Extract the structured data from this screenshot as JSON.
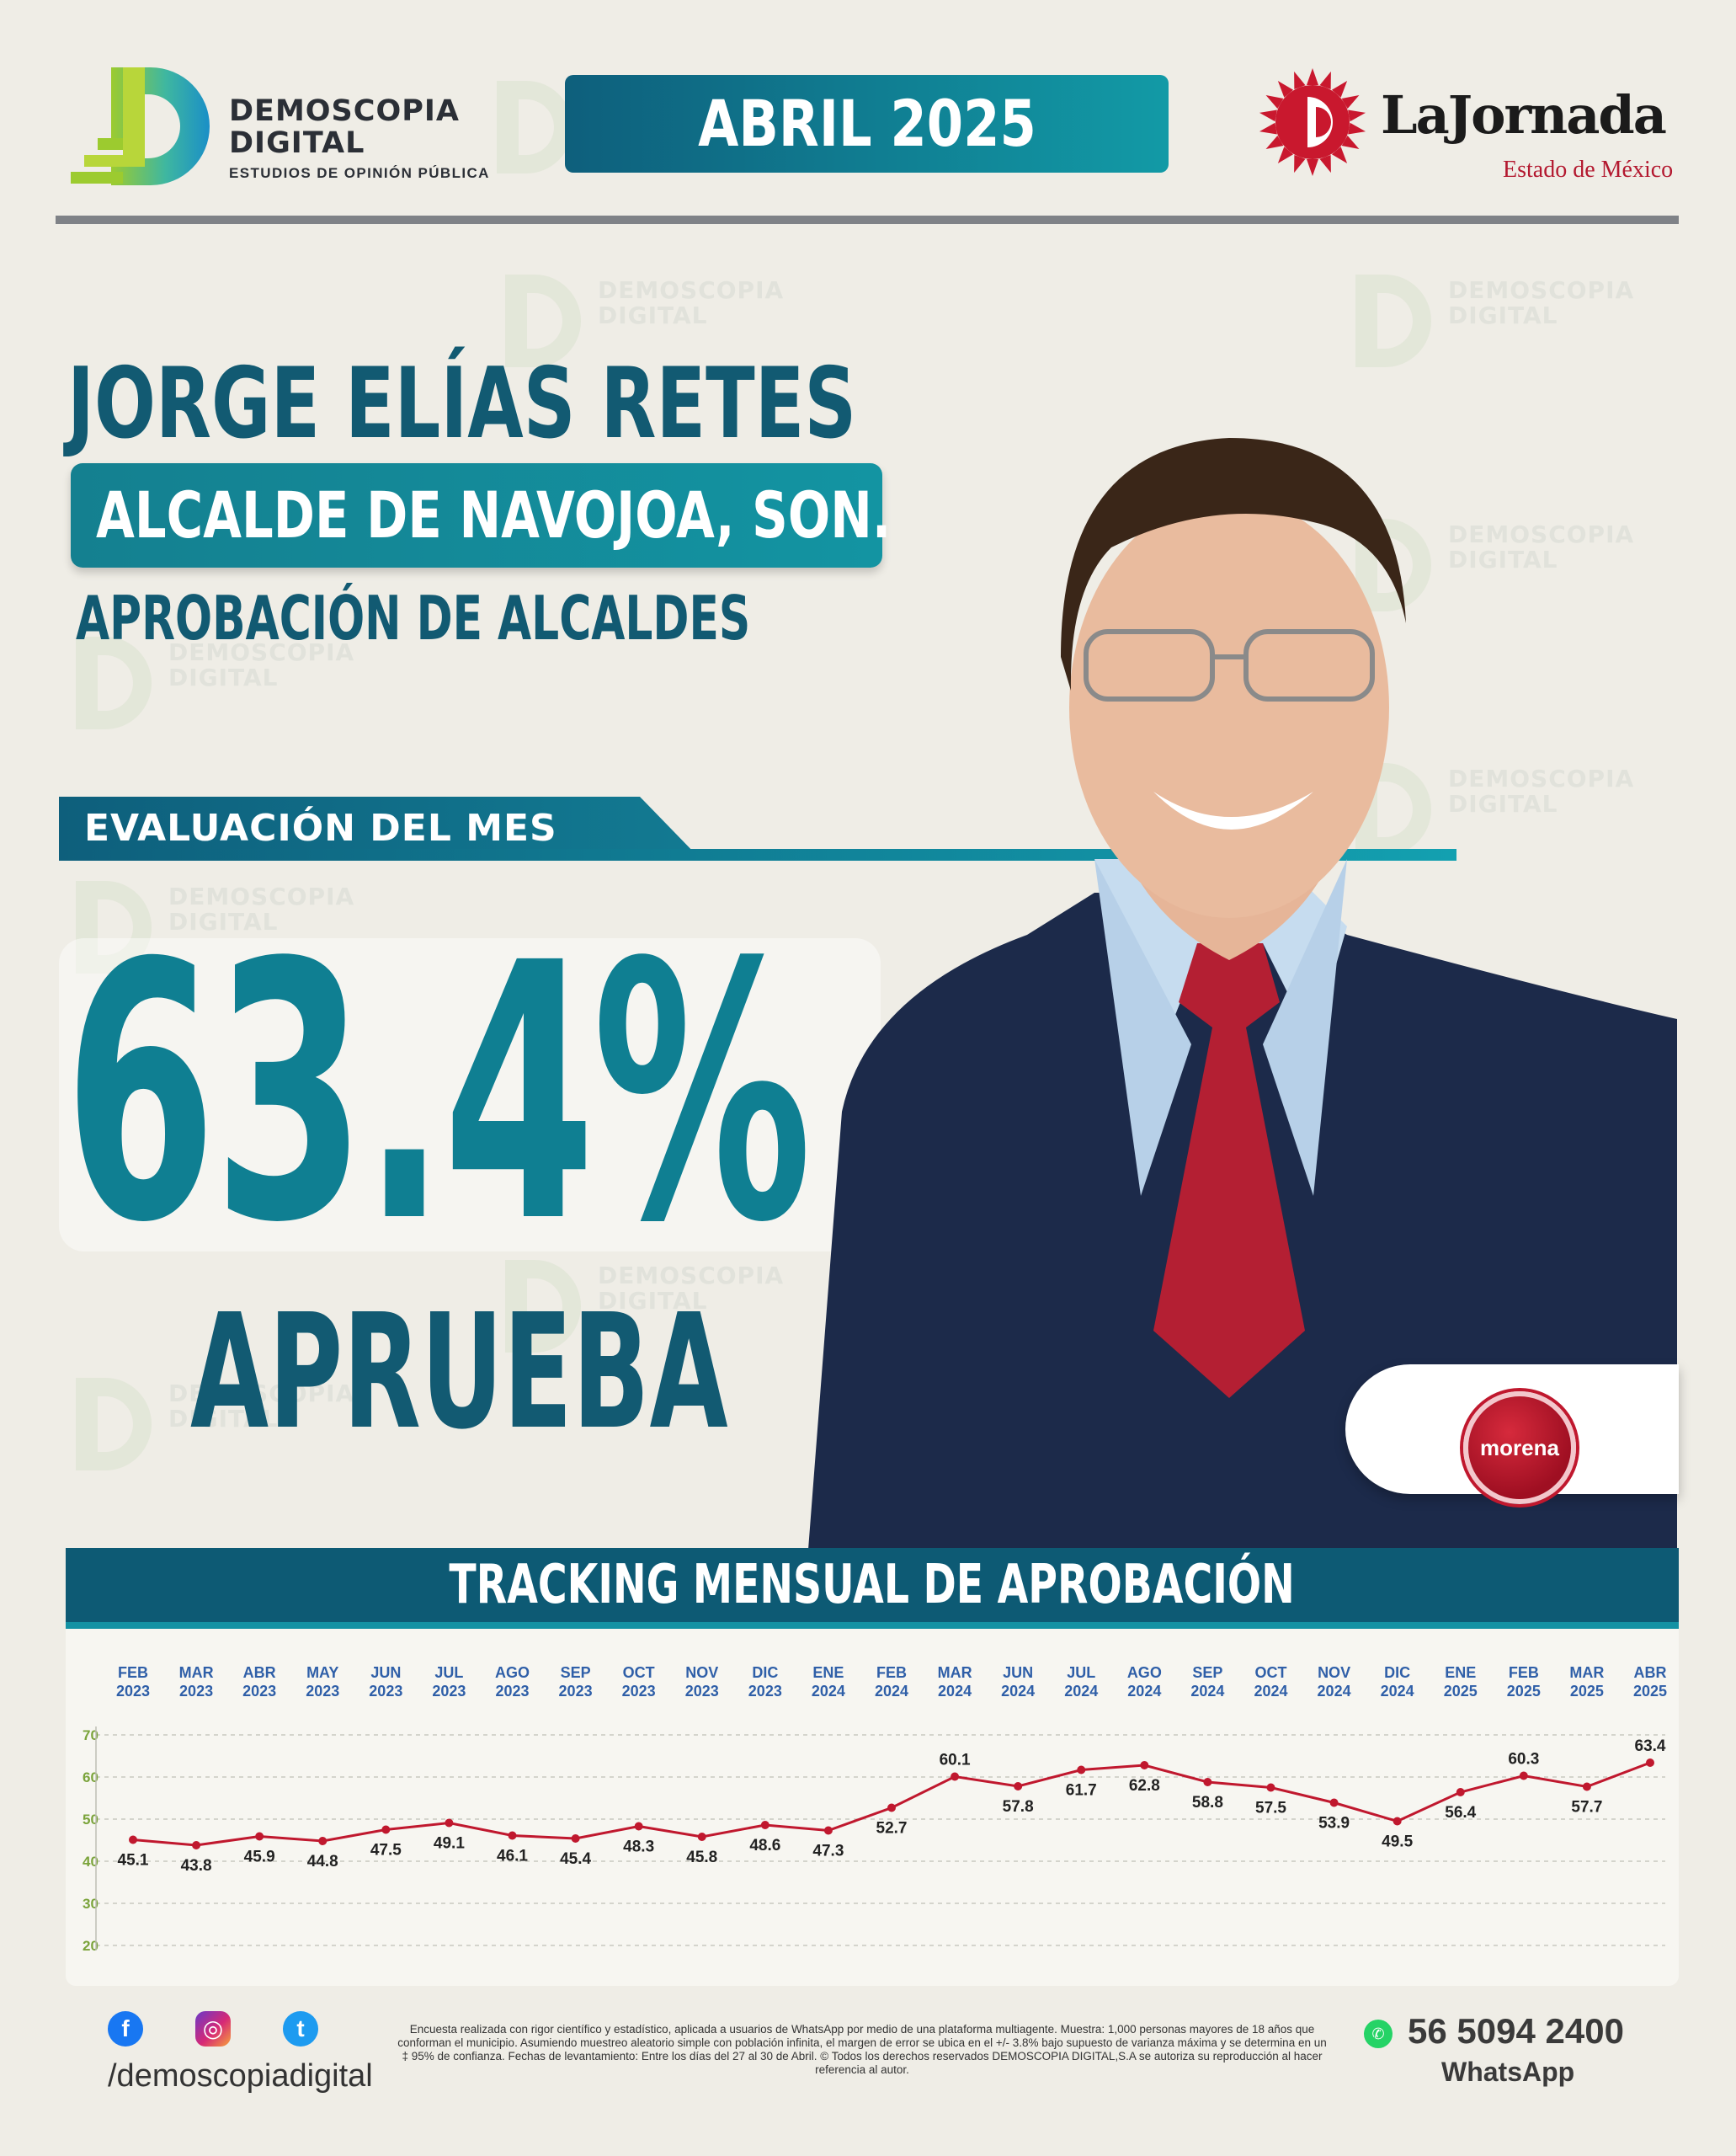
{
  "header": {
    "pollster_line1": "DEMOSCOPIA",
    "pollster_line2": "DIGITAL",
    "pollster_tagline": "ESTUDIOS DE OPINIÓN PÚBLICA",
    "date": "ABRIL 2025",
    "media_name": "LaJornada",
    "media_region": "Estado de México"
  },
  "profile": {
    "name": "JORGE ELÍAS RETES",
    "role": "ALCALDE DE NAVOJOA, SON.",
    "subtitle": "APROBACIÓN DE ALCALDES",
    "eval_label": "EVALUACIÓN DEL MES",
    "approval": "63.4%",
    "approval_label": "APRUEBA",
    "party": "morena"
  },
  "colors": {
    "primary": "#125a72",
    "accent": "#0f7f92",
    "line": "#c0182e",
    "month_labels": "#2f5fa8",
    "y_ticks": "#7aa33a"
  },
  "chart_data": {
    "type": "line",
    "title": "TRACKING MENSUAL DE APROBACIÓN",
    "x": [
      "FEB 2023",
      "MAR 2023",
      "ABR 2023",
      "MAY 2023",
      "JUN 2023",
      "JUL 2023",
      "AGO 2023",
      "SEP 2023",
      "OCT 2023",
      "NOV 2023",
      "DIC 2023",
      "ENE 2024",
      "FEB 2024",
      "MAR 2024",
      "JUN 2024",
      "JUL 2024",
      "AGO 2024",
      "SEP 2024",
      "OCT 2024",
      "NOV 2024",
      "DIC 2024",
      "ENE 2025",
      "FEB 2025",
      "MAR 2025",
      "ABR 2025"
    ],
    "months": [
      "FEB",
      "MAR",
      "ABR",
      "MAY",
      "JUN",
      "JUL",
      "AGO",
      "SEP",
      "OCT",
      "NOV",
      "DIC",
      "ENE",
      "FEB",
      "MAR",
      "JUN",
      "JUL",
      "AGO",
      "SEP",
      "OCT",
      "NOV",
      "DIC",
      "ENE",
      "FEB",
      "MAR",
      "ABR"
    ],
    "years": [
      "2023",
      "2023",
      "2023",
      "2023",
      "2023",
      "2023",
      "2023",
      "2023",
      "2023",
      "2023",
      "2023",
      "2024",
      "2024",
      "2024",
      "2024",
      "2024",
      "2024",
      "2024",
      "2024",
      "2024",
      "2024",
      "2025",
      "2025",
      "2025",
      "2025"
    ],
    "values": [
      45.1,
      43.8,
      45.9,
      44.8,
      47.5,
      49.1,
      46.1,
      45.4,
      48.3,
      45.8,
      48.6,
      47.3,
      52.7,
      60.1,
      57.8,
      61.7,
      62.8,
      58.8,
      57.5,
      53.9,
      49.5,
      56.4,
      60.3,
      57.7,
      63.4
    ],
    "ylim": [
      20,
      70
    ],
    "yticks": [
      70,
      60,
      50,
      40,
      30,
      20
    ],
    "grid": true
  },
  "footer": {
    "facebook": "f",
    "instagram": "◎",
    "twitter": "t",
    "handle": "/demoscopiadigital",
    "disclaimer": "Encuesta realizada con rigor científico y estadístico, aplicada a usuarios de WhatsApp por medio de una plataforma multiagente. Muestra: 1,000 personas mayores de 18 años que conforman el municipio. Asumiendo muestreo aleatorio simple con población infinita, el margen de error se ubica en el +/- 3.8% bajo supuesto de varianza máxima y se determina en un ‡ 95% de confianza. Fechas de levantamiento: Entre los días del 27 al 30 de Abril. © Todos los derechos reservados DEMOSCOPIA DIGITAL,S.A se autoriza su reproducción al hacer referencia al autor.",
    "phone": "56 5094 2400",
    "phone_label": "WhatsApp",
    "whatsapp_icon": "✆"
  }
}
